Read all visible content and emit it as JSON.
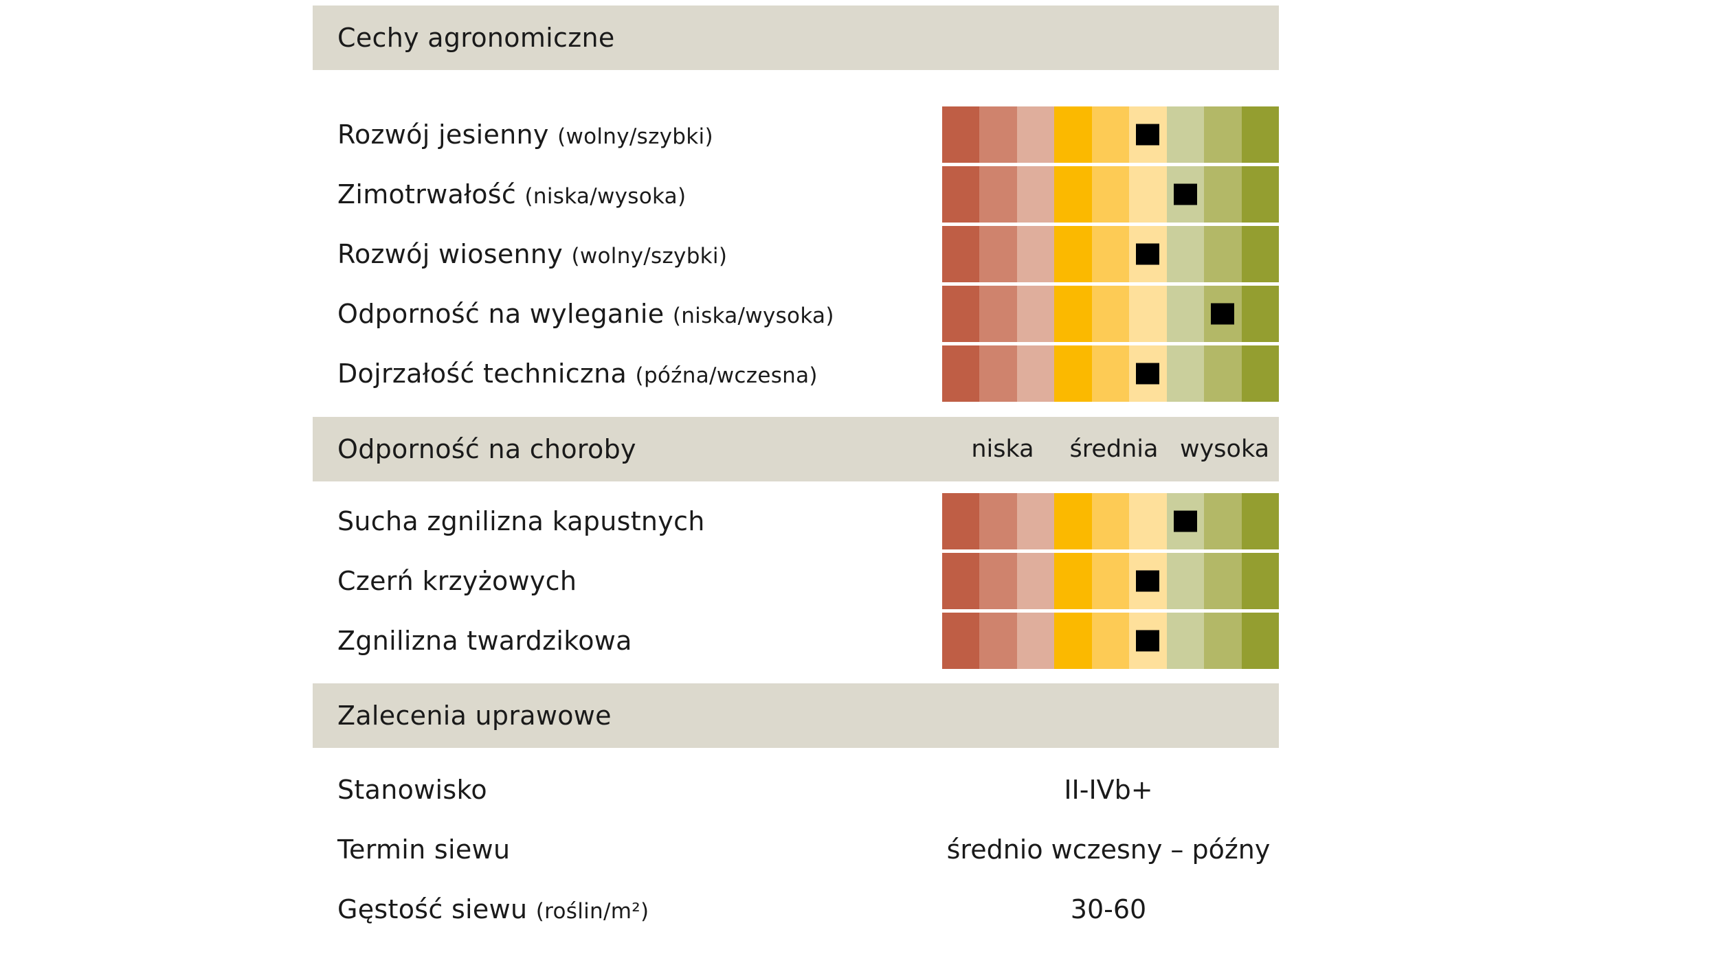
{
  "palette": [
    "#bf5e45",
    "#cf836d",
    "#dfae9c",
    "#fbb900",
    "#fdcb55",
    "#fee09b",
    "#cacf9c",
    "#b3b867",
    "#949e30"
  ],
  "sections": {
    "agronomic": {
      "title": "Cechy agronomiczne",
      "rows": [
        {
          "label": "Rozwój jesienny",
          "hint": "(wolny/szybki)",
          "level": 6
        },
        {
          "label": "Zimotrwałość",
          "hint": "(niska/wysoka)",
          "level": 7
        },
        {
          "label": "Rozwój wiosenny",
          "hint": "(wolny/szybki)",
          "level": 6
        },
        {
          "label": "Odporność na wyleganie",
          "hint": "(niska/wysoka)",
          "level": 8
        },
        {
          "label": "Dojrzałość techniczna",
          "hint": "(późna/wczesna)",
          "level": 6
        }
      ]
    },
    "disease": {
      "title": "Odporność na choroby",
      "scale_labels": [
        "niska",
        "średnia",
        "wysoka"
      ],
      "rows": [
        {
          "label": "Sucha zgnilizna kapustnych",
          "level": 7
        },
        {
          "label": "Czerń krzyżowych",
          "level": 6
        },
        {
          "label": "Zgnilizna twardzikowa",
          "level": 6
        }
      ]
    },
    "recommendations": {
      "title": "Zalecenia uprawowe",
      "rows": [
        {
          "label": "Stanowisko",
          "hint": "",
          "value": "II-IVb+"
        },
        {
          "label": "Termin siewu",
          "hint": "",
          "value": "średnio wczesny – późny"
        },
        {
          "label": "Gęstość siewu",
          "hint": "(roślin/m²)",
          "value": "30-60"
        }
      ]
    }
  }
}
